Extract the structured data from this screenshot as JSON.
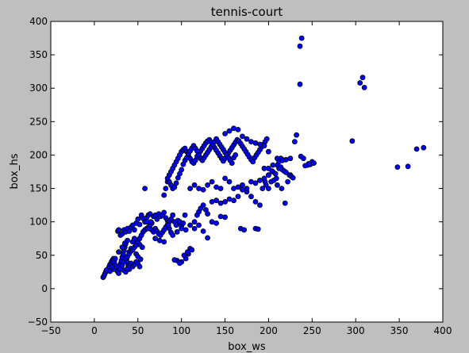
{
  "chart_data": {
    "type": "scatter",
    "title": "tennis-court",
    "xlabel": "box_ws",
    "ylabel": "box_hs",
    "xlim": [
      -50,
      400
    ],
    "ylim": [
      -50,
      400
    ],
    "xticks": [
      -50,
      0,
      50,
      100,
      150,
      200,
      250,
      300,
      350,
      400
    ],
    "yticks": [
      -50,
      0,
      50,
      100,
      150,
      200,
      250,
      300,
      350,
      400
    ],
    "xtick_labels": [
      "−50",
      "0",
      "50",
      "100",
      "150",
      "200",
      "250",
      "300",
      "350",
      "400"
    ],
    "ytick_labels": [
      "−50",
      "0",
      "50",
      "100",
      "150",
      "200",
      "250",
      "300",
      "350",
      "400"
    ],
    "grid": false,
    "marker_color": "#0000ff",
    "marker_edge_color": "#000000",
    "background_color": "#ffffff",
    "figure_color": "#bfbfbf",
    "points": [
      [
        10,
        17
      ],
      [
        11,
        19
      ],
      [
        12,
        22
      ],
      [
        13,
        25
      ],
      [
        15,
        27
      ],
      [
        16,
        30
      ],
      [
        17,
        33
      ],
      [
        18,
        36
      ],
      [
        19,
        38
      ],
      [
        20,
        41
      ],
      [
        21,
        43
      ],
      [
        22,
        45
      ],
      [
        23,
        40
      ],
      [
        24,
        35
      ],
      [
        25,
        30
      ],
      [
        26,
        27
      ],
      [
        27,
        25
      ],
      [
        28,
        23
      ],
      [
        29,
        32
      ],
      [
        30,
        37
      ],
      [
        31,
        42
      ],
      [
        32,
        47
      ],
      [
        33,
        52
      ],
      [
        34,
        57
      ],
      [
        35,
        62
      ],
      [
        36,
        67
      ],
      [
        37,
        44
      ],
      [
        38,
        39
      ],
      [
        39,
        34
      ],
      [
        40,
        29
      ],
      [
        14,
        28
      ],
      [
        18,
        26
      ],
      [
        22,
        29
      ],
      [
        26,
        33
      ],
      [
        30,
        35
      ],
      [
        33,
        28
      ],
      [
        36,
        25
      ],
      [
        38,
        30
      ],
      [
        40,
        35
      ],
      [
        42,
        38
      ],
      [
        44,
        33
      ],
      [
        46,
        36
      ],
      [
        48,
        40
      ],
      [
        50,
        38
      ],
      [
        52,
        33
      ],
      [
        53,
        44
      ],
      [
        55,
        62
      ],
      [
        20,
        32
      ],
      [
        24,
        45
      ],
      [
        28,
        55
      ],
      [
        32,
        62
      ],
      [
        35,
        68
      ],
      [
        38,
        72
      ],
      [
        40,
        55
      ],
      [
        42,
        60
      ],
      [
        44,
        70
      ],
      [
        46,
        75
      ],
      [
        48,
        52
      ],
      [
        50,
        48
      ],
      [
        52,
        66
      ],
      [
        27,
        86
      ],
      [
        28,
        88
      ],
      [
        30,
        80
      ],
      [
        32,
        82
      ],
      [
        34,
        88
      ],
      [
        36,
        85
      ],
      [
        38,
        90
      ],
      [
        40,
        86
      ],
      [
        42,
        92
      ],
      [
        44,
        95
      ],
      [
        46,
        88
      ],
      [
        48,
        98
      ],
      [
        50,
        104
      ],
      [
        52,
        96
      ],
      [
        54,
        110
      ],
      [
        56,
        105
      ],
      [
        58,
        100
      ],
      [
        60,
        106
      ],
      [
        62,
        110
      ],
      [
        64,
        112
      ],
      [
        66,
        98
      ],
      [
        68,
        108
      ],
      [
        70,
        110
      ],
      [
        72,
        104
      ],
      [
        74,
        112
      ],
      [
        76,
        108
      ],
      [
        78,
        110
      ],
      [
        80,
        114
      ],
      [
        82,
        106
      ],
      [
        84,
        102
      ],
      [
        86,
        100
      ],
      [
        88,
        104
      ],
      [
        90,
        110
      ],
      [
        92,
        100
      ],
      [
        94,
        95
      ],
      [
        96,
        102
      ],
      [
        98,
        100
      ],
      [
        100,
        94
      ],
      [
        102,
        98
      ],
      [
        104,
        110
      ],
      [
        30,
        30
      ],
      [
        32,
        35
      ],
      [
        34,
        40
      ],
      [
        36,
        45
      ],
      [
        38,
        48
      ],
      [
        40,
        52
      ],
      [
        42,
        56
      ],
      [
        44,
        58
      ],
      [
        46,
        62
      ],
      [
        48,
        65
      ],
      [
        50,
        70
      ],
      [
        52,
        75
      ],
      [
        54,
        80
      ],
      [
        56,
        85
      ],
      [
        58,
        88
      ],
      [
        60,
        90
      ],
      [
        62,
        92
      ],
      [
        64,
        95
      ],
      [
        66,
        88
      ],
      [
        68,
        85
      ],
      [
        70,
        90
      ],
      [
        72,
        86
      ],
      [
        74,
        82
      ],
      [
        76,
        80
      ],
      [
        78,
        84
      ],
      [
        80,
        88
      ],
      [
        82,
        92
      ],
      [
        84,
        96
      ],
      [
        86,
        90
      ],
      [
        88,
        84
      ],
      [
        58,
        150
      ],
      [
        62,
        90
      ],
      [
        60,
        100
      ],
      [
        65,
        100
      ],
      [
        70,
        75
      ],
      [
        75,
        72
      ],
      [
        80,
        70
      ],
      [
        85,
        95
      ],
      [
        90,
        80
      ],
      [
        95,
        85
      ],
      [
        100,
        90
      ],
      [
        105,
        88
      ],
      [
        110,
        95
      ],
      [
        115,
        90
      ],
      [
        120,
        95
      ],
      [
        125,
        86
      ],
      [
        130,
        76
      ],
      [
        135,
        100
      ],
      [
        140,
        98
      ],
      [
        145,
        108
      ],
      [
        150,
        107
      ],
      [
        145,
        128
      ],
      [
        150,
        130
      ],
      [
        155,
        134
      ],
      [
        160,
        132
      ],
      [
        165,
        138
      ],
      [
        170,
        148
      ],
      [
        175,
        145
      ],
      [
        180,
        138
      ],
      [
        185,
        130
      ],
      [
        168,
        90
      ],
      [
        172,
        88
      ],
      [
        185,
        90
      ],
      [
        188,
        89
      ],
      [
        190,
        125
      ],
      [
        193,
        150
      ],
      [
        196,
        160
      ],
      [
        200,
        170
      ],
      [
        205,
        175
      ],
      [
        210,
        155
      ],
      [
        215,
        150
      ],
      [
        219,
        128
      ],
      [
        222,
        160
      ],
      [
        225,
        170
      ],
      [
        195,
        180
      ],
      [
        197,
        155
      ],
      [
        200,
        150
      ],
      [
        203,
        160
      ],
      [
        206,
        162
      ],
      [
        209,
        165
      ],
      [
        80,
        140
      ],
      [
        82,
        150
      ],
      [
        84,
        160
      ],
      [
        86,
        170
      ],
      [
        88,
        175
      ],
      [
        90,
        180
      ],
      [
        92,
        185
      ],
      [
        94,
        190
      ],
      [
        96,
        195
      ],
      [
        98,
        200
      ],
      [
        100,
        205
      ],
      [
        102,
        208
      ],
      [
        104,
        210
      ],
      [
        106,
        205
      ],
      [
        108,
        200
      ],
      [
        110,
        195
      ],
      [
        112,
        190
      ],
      [
        114,
        188
      ],
      [
        116,
        192
      ],
      [
        118,
        198
      ],
      [
        120,
        202
      ],
      [
        122,
        206
      ],
      [
        124,
        210
      ],
      [
        126,
        214
      ],
      [
        128,
        218
      ],
      [
        130,
        221
      ],
      [
        132,
        223
      ],
      [
        134,
        219
      ],
      [
        136,
        215
      ],
      [
        138,
        211
      ],
      [
        140,
        207
      ],
      [
        142,
        203
      ],
      [
        144,
        199
      ],
      [
        146,
        195
      ],
      [
        148,
        191
      ],
      [
        150,
        195
      ],
      [
        152,
        199
      ],
      [
        154,
        203
      ],
      [
        156,
        207
      ],
      [
        158,
        211
      ],
      [
        160,
        215
      ],
      [
        162,
        219
      ],
      [
        164,
        223
      ],
      [
        166,
        221
      ],
      [
        168,
        217
      ],
      [
        170,
        213
      ],
      [
        172,
        209
      ],
      [
        174,
        205
      ],
      [
        176,
        201
      ],
      [
        178,
        197
      ],
      [
        180,
        193
      ],
      [
        182,
        190
      ],
      [
        184,
        196
      ],
      [
        186,
        200
      ],
      [
        188,
        204
      ],
      [
        190,
        208
      ],
      [
        192,
        212
      ],
      [
        194,
        216
      ],
      [
        196,
        220
      ],
      [
        198,
        224
      ],
      [
        84,
        165
      ],
      [
        86,
        160
      ],
      [
        88,
        155
      ],
      [
        90,
        150
      ],
      [
        92,
        152
      ],
      [
        94,
        158
      ],
      [
        96,
        166
      ],
      [
        98,
        172
      ],
      [
        100,
        178
      ],
      [
        102,
        186
      ],
      [
        104,
        192
      ],
      [
        106,
        196
      ],
      [
        108,
        202
      ],
      [
        110,
        206
      ],
      [
        112,
        210
      ],
      [
        114,
        214
      ],
      [
        116,
        210
      ],
      [
        118,
        206
      ],
      [
        120,
        200
      ],
      [
        122,
        195
      ],
      [
        124,
        192
      ],
      [
        126,
        196
      ],
      [
        128,
        200
      ],
      [
        130,
        204
      ],
      [
        132,
        208
      ],
      [
        134,
        212
      ],
      [
        136,
        216
      ],
      [
        138,
        220
      ],
      [
        140,
        224
      ],
      [
        142,
        220
      ],
      [
        144,
        216
      ],
      [
        146,
        212
      ],
      [
        148,
        208
      ],
      [
        150,
        204
      ],
      [
        152,
        200
      ],
      [
        154,
        196
      ],
      [
        156,
        192
      ],
      [
        158,
        188
      ],
      [
        160,
        196
      ],
      [
        162,
        200
      ],
      [
        150,
        232
      ],
      [
        155,
        236
      ],
      [
        160,
        240
      ],
      [
        165,
        238
      ],
      [
        170,
        228
      ],
      [
        175,
        224
      ],
      [
        180,
        220
      ],
      [
        185,
        218
      ],
      [
        190,
        216
      ],
      [
        195,
        214
      ],
      [
        160,
        150
      ],
      [
        165,
        152
      ],
      [
        170,
        155
      ],
      [
        175,
        150
      ],
      [
        180,
        160
      ],
      [
        185,
        158
      ],
      [
        190,
        162
      ],
      [
        195,
        165
      ],
      [
        200,
        170
      ],
      [
        205,
        185
      ],
      [
        110,
        150
      ],
      [
        115,
        155
      ],
      [
        120,
        150
      ],
      [
        125,
        148
      ],
      [
        130,
        155
      ],
      [
        135,
        160
      ],
      [
        140,
        152
      ],
      [
        145,
        150
      ],
      [
        150,
        165
      ],
      [
        155,
        160
      ],
      [
        103,
        50
      ],
      [
        105,
        45
      ],
      [
        108,
        52
      ],
      [
        110,
        60
      ],
      [
        100,
        40
      ],
      [
        95,
        42
      ],
      [
        98,
        38
      ],
      [
        92,
        43
      ],
      [
        107,
        55
      ],
      [
        112,
        58
      ],
      [
        115,
        100
      ],
      [
        118,
        110
      ],
      [
        120,
        115
      ],
      [
        122,
        120
      ],
      [
        125,
        125
      ],
      [
        128,
        118
      ],
      [
        130,
        112
      ],
      [
        135,
        130
      ],
      [
        140,
        132
      ],
      [
        200,
        205
      ],
      [
        210,
        195
      ],
      [
        215,
        194
      ],
      [
        220,
        193
      ],
      [
        225,
        195
      ],
      [
        230,
        220
      ],
      [
        232,
        230
      ],
      [
        237,
        198
      ],
      [
        240,
        195
      ],
      [
        245,
        185
      ],
      [
        248,
        186
      ],
      [
        250,
        190
      ],
      [
        210,
        185
      ],
      [
        212,
        180
      ],
      [
        214,
        182
      ],
      [
        216,
        178
      ],
      [
        218,
        176
      ],
      [
        220,
        174
      ],
      [
        224,
        170
      ],
      [
        226,
        168
      ],
      [
        228,
        166
      ],
      [
        238,
        375
      ],
      [
        236,
        363
      ],
      [
        236,
        306
      ],
      [
        305,
        308
      ],
      [
        308,
        316
      ],
      [
        310,
        301
      ],
      [
        296,
        221
      ],
      [
        348,
        182
      ],
      [
        360,
        183
      ],
      [
        370,
        209
      ],
      [
        378,
        211
      ],
      [
        252,
        188
      ],
      [
        246,
        187
      ],
      [
        242,
        184
      ],
      [
        200,
        180
      ],
      [
        204,
        176
      ],
      [
        208,
        172
      ],
      [
        212,
        190
      ],
      [
        214,
        195
      ],
      [
        216,
        192
      ]
    ]
  }
}
